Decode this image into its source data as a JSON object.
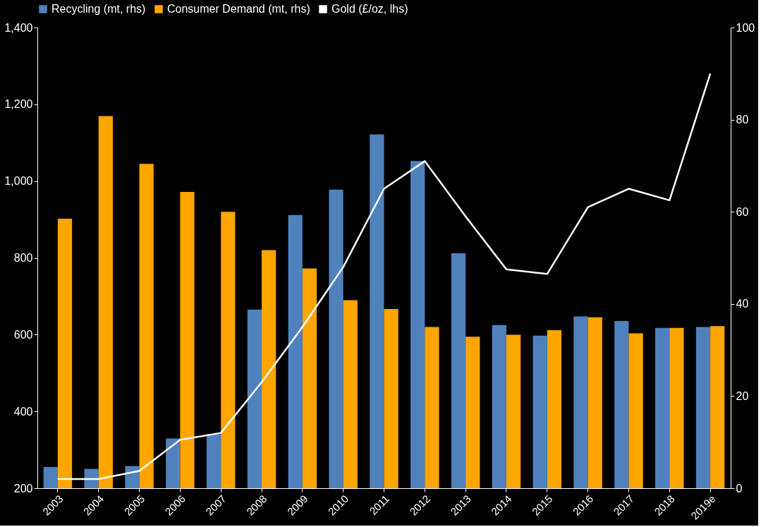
{
  "chart_data": {
    "type": "bar",
    "categories": [
      "2003",
      "2004",
      "2005",
      "2006",
      "2007",
      "2008",
      "2009",
      "2010",
      "2011",
      "2012",
      "2013",
      "2014",
      "2015",
      "2016",
      "2017",
      "2018",
      "2019e"
    ],
    "series": [
      {
        "name": "Recycling (mt, rhs)",
        "axis": "y2",
        "color": "#4f81bd",
        "values": [
          4.6,
          4.2,
          4.8,
          10.8,
          11.7,
          38.8,
          59.3,
          64.8,
          76.8,
          71,
          51,
          35.4,
          33.1,
          37.3,
          36.3,
          34.8,
          35
        ]
      },
      {
        "name": "Consumer Demand (mt, rhs)",
        "axis": "y2",
        "color": "#ffa500",
        "values": [
          58.5,
          80.8,
          70.4,
          64.3,
          60,
          51.7,
          47.7,
          40.8,
          38.9,
          35,
          32.9,
          33.3,
          34.3,
          37.1,
          33.6,
          34.8,
          35.2
        ]
      },
      {
        "name": "Gold (£/oz, lhs)",
        "type": "line",
        "axis": "y",
        "color": "#ffffff",
        "values": [
          224,
          224,
          245,
          326,
          344,
          476,
          620,
          776,
          980,
          1052,
          908,
          770,
          758,
          932,
          980,
          950,
          1280
        ]
      }
    ],
    "ylim": [
      200,
      1400
    ],
    "yticks": [
      200,
      400,
      600,
      800,
      {
        "value": 1000,
        "label": "1,000"
      },
      {
        "value": 1200,
        "label": "1,200"
      },
      {
        "value": 1400,
        "label": "1,400"
      }
    ],
    "y2lim": [
      0,
      100
    ],
    "y2ticks": [
      0,
      20,
      40,
      60,
      80,
      100
    ],
    "grid": false,
    "legend": "top",
    "marker": "none",
    "line_style": "solid"
  }
}
